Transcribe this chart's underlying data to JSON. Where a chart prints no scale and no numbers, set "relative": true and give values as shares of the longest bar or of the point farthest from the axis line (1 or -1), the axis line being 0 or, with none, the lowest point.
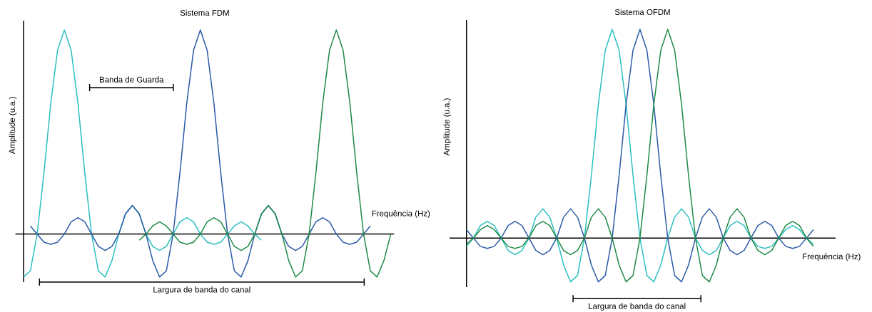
{
  "chart_data": [
    {
      "type": "line",
      "title": "Sistema FDM",
      "xlabel": "Frequência (Hz)",
      "ylabel": "Amplitude (u.a.)",
      "relative": true,
      "categories": [
        null,
        null,
        null,
        null,
        null,
        null,
        null,
        null,
        null,
        null,
        null,
        null,
        null,
        null,
        null,
        null,
        null,
        null,
        null,
        null,
        null,
        null,
        null,
        null,
        null,
        null,
        null,
        null,
        null,
        null,
        null,
        null,
        null,
        null,
        null,
        null,
        null,
        null,
        null,
        null,
        null,
        null,
        null,
        null,
        null,
        null,
        null,
        null,
        null,
        null,
        null,
        null,
        null,
        null,
        null
      ],
      "series": [
        {
          "color": "#2bbfbf",
          "values": [
            -0.21,
            -0.18,
            0,
            0.3,
            0.64,
            0.9,
            1,
            0.9,
            0.64,
            0.3,
            0,
            -0.18,
            -0.21,
            -0.13,
            0,
            0.1,
            0.14,
            0.1,
            0,
            -0.06,
            -0.08,
            -0.06,
            0,
            0.06,
            0.08,
            0.06,
            0,
            -0.04,
            -0.05,
            -0.04,
            0,
            0.04,
            0.06,
            0.04,
            0,
            -0.03,
            null,
            null,
            null,
            null,
            null,
            null,
            null,
            null,
            null,
            null,
            null,
            null,
            null,
            null,
            null,
            null,
            null,
            null,
            null
          ]
        },
        {
          "color": "#2a5aa8",
          "values": [
            null,
            0.04,
            0,
            -0.04,
            -0.05,
            -0.04,
            0,
            0.06,
            0.08,
            0.06,
            0,
            -0.06,
            -0.08,
            -0.06,
            0,
            0.1,
            0.14,
            0.1,
            0,
            -0.13,
            -0.21,
            -0.18,
            0,
            0.3,
            0.64,
            0.9,
            1,
            0.9,
            0.64,
            0.3,
            0,
            -0.18,
            -0.21,
            -0.13,
            0,
            0.1,
            0.14,
            0.1,
            0,
            -0.06,
            -0.08,
            -0.06,
            0,
            0.06,
            0.08,
            0.06,
            0,
            -0.04,
            -0.05,
            -0.04,
            0,
            0.04,
            null,
            null,
            null
          ]
        },
        {
          "color": "#1e8a47",
          "values": [
            null,
            null,
            null,
            null,
            null,
            null,
            null,
            null,
            null,
            null,
            null,
            null,
            null,
            null,
            null,
            null,
            null,
            -0.03,
            0,
            0.04,
            0.06,
            0.04,
            0,
            -0.04,
            -0.05,
            -0.04,
            0,
            0.06,
            0.08,
            0.06,
            0,
            -0.06,
            -0.08,
            -0.06,
            0,
            0.1,
            0.14,
            0.1,
            0,
            -0.13,
            -0.21,
            -0.18,
            0,
            0.3,
            0.64,
            0.9,
            1,
            0.9,
            0.64,
            0.3,
            0,
            -0.18,
            -0.21,
            -0.13,
            0
          ]
        }
      ],
      "annotations": [
        "Banda de Guarda",
        "Largura de banda do canal"
      ]
    },
    {
      "type": "line",
      "title": "Sistema OFDM",
      "xlabel": "Frequência (Hz)",
      "ylabel": "Amplitude (u.a.)",
      "relative": true,
      "categories": [
        null,
        null,
        null,
        null,
        null,
        null,
        null,
        null,
        null,
        null,
        null,
        null,
        null,
        null,
        null,
        null,
        null,
        null,
        null,
        null,
        null,
        null,
        null,
        null,
        null,
        null,
        null,
        null,
        null,
        null,
        null,
        null,
        null,
        null,
        null,
        null,
        null,
        null,
        null,
        null,
        null,
        null,
        null,
        null,
        null,
        null,
        null,
        null,
        null,
        null,
        null
      ],
      "series": [
        {
          "color": "#2bbfbf",
          "values": [
            -0.04,
            0,
            0.06,
            0.08,
            0.06,
            0,
            -0.06,
            -0.08,
            -0.06,
            0,
            0.1,
            0.14,
            0.1,
            0,
            -0.13,
            -0.21,
            -0.18,
            0,
            0.3,
            0.64,
            0.9,
            1,
            0.9,
            0.64,
            0.3,
            0,
            -0.18,
            -0.21,
            -0.13,
            0,
            0.1,
            0.14,
            0.1,
            0,
            -0.06,
            -0.08,
            -0.06,
            0,
            0.06,
            0.08,
            0.06,
            0,
            -0.04,
            -0.05,
            -0.04,
            0,
            0.04,
            0.06,
            0.04,
            0,
            -0.03
          ]
        },
        {
          "color": "#2a5aa8",
          "values": [
            0.04,
            0,
            -0.04,
            -0.05,
            -0.04,
            0,
            0.06,
            0.08,
            0.06,
            0,
            -0.06,
            -0.08,
            -0.06,
            0,
            0.1,
            0.14,
            0.1,
            0,
            -0.13,
            -0.21,
            -0.18,
            0,
            0.3,
            0.64,
            0.9,
            1,
            0.9,
            0.64,
            0.3,
            0,
            -0.18,
            -0.21,
            -0.13,
            0,
            0.1,
            0.14,
            0.1,
            0,
            -0.06,
            -0.08,
            -0.06,
            0,
            0.06,
            0.08,
            0.06,
            0,
            -0.04,
            -0.05,
            -0.04,
            0,
            0.04
          ]
        },
        {
          "color": "#1e8a47",
          "values": [
            -0.03,
            0,
            0.04,
            0.06,
            0.04,
            0,
            -0.04,
            -0.05,
            -0.04,
            0,
            0.06,
            0.08,
            0.06,
            0,
            -0.06,
            -0.08,
            -0.06,
            0,
            0.1,
            0.14,
            0.1,
            0,
            -0.13,
            -0.21,
            -0.18,
            0,
            0.3,
            0.64,
            0.9,
            1,
            0.9,
            0.64,
            0.3,
            0,
            -0.18,
            -0.21,
            -0.13,
            0,
            0.1,
            0.14,
            0.1,
            0,
            -0.06,
            -0.08,
            -0.06,
            0,
            0.06,
            0.08,
            0.06,
            0,
            -0.04
          ]
        }
      ],
      "annotations": [
        "Largura de banda do canal"
      ]
    }
  ]
}
